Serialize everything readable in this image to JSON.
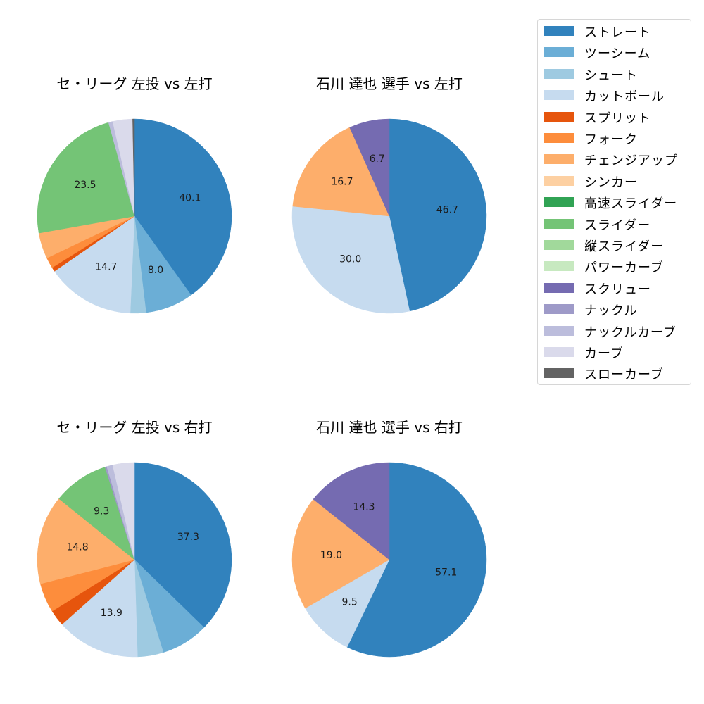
{
  "legend": {
    "items": [
      {
        "label": "ストレート",
        "color": "#3182bd"
      },
      {
        "label": "ツーシーム",
        "color": "#6baed6"
      },
      {
        "label": "シュート",
        "color": "#9ecae1"
      },
      {
        "label": "カットボール",
        "color": "#c6dbef"
      },
      {
        "label": "スプリット",
        "color": "#e6550d"
      },
      {
        "label": "フォーク",
        "color": "#fd8d3c"
      },
      {
        "label": "チェンジアップ",
        "color": "#fdae6b"
      },
      {
        "label": "シンカー",
        "color": "#fdd0a2"
      },
      {
        "label": "高速スライダー",
        "color": "#31a354"
      },
      {
        "label": "スライダー",
        "color": "#74c476"
      },
      {
        "label": "縦スライダー",
        "color": "#a1d99b"
      },
      {
        "label": "パワーカーブ",
        "color": "#c7e9c0"
      },
      {
        "label": "スクリュー",
        "color": "#756bb1"
      },
      {
        "label": "ナックル",
        "color": "#9e9ac8"
      },
      {
        "label": "ナックルカーブ",
        "color": "#bcbddc"
      },
      {
        "label": "カーブ",
        "color": "#dadaeb"
      },
      {
        "label": "スローカーブ",
        "color": "#636363"
      }
    ]
  },
  "chart_data": [
    {
      "type": "pie",
      "title": "セ・リーグ 左投 vs 左打",
      "start_angle": 90,
      "direction": "clockwise",
      "slices": [
        {
          "label": "ストレート",
          "value": 40.1,
          "shown": "40.1"
        },
        {
          "label": "ツーシーム",
          "value": 8.0,
          "shown": "8.0"
        },
        {
          "label": "シュート",
          "value": 2.6,
          "shown": ""
        },
        {
          "label": "カットボール",
          "value": 14.7,
          "shown": "14.7"
        },
        {
          "label": "スプリット",
          "value": 0.7,
          "shown": ""
        },
        {
          "label": "フォーク",
          "value": 1.8,
          "shown": ""
        },
        {
          "label": "チェンジアップ",
          "value": 4.3,
          "shown": ""
        },
        {
          "label": "スライダー",
          "value": 23.5,
          "shown": "23.5"
        },
        {
          "label": "ナックルカーブ",
          "value": 0.7,
          "shown": ""
        },
        {
          "label": "カーブ",
          "value": 3.3,
          "shown": ""
        },
        {
          "label": "スローカーブ",
          "value": 0.3,
          "shown": ""
        }
      ]
    },
    {
      "type": "pie",
      "title": "石川 達也 選手 vs 左打",
      "start_angle": 90,
      "direction": "clockwise",
      "slices": [
        {
          "label": "ストレート",
          "value": 46.7,
          "shown": "46.7"
        },
        {
          "label": "カットボール",
          "value": 30.0,
          "shown": "30.0"
        },
        {
          "label": "チェンジアップ",
          "value": 16.7,
          "shown": "16.7"
        },
        {
          "label": "スクリュー",
          "value": 6.7,
          "shown": "6.7"
        }
      ]
    },
    {
      "type": "pie",
      "title": "セ・リーグ 左投 vs 右打",
      "start_angle": 90,
      "direction": "clockwise",
      "slices": [
        {
          "label": "ストレート",
          "value": 37.3,
          "shown": "37.3"
        },
        {
          "label": "ツーシーム",
          "value": 7.9,
          "shown": ""
        },
        {
          "label": "シュート",
          "value": 4.3,
          "shown": ""
        },
        {
          "label": "カットボール",
          "value": 13.9,
          "shown": "13.9"
        },
        {
          "label": "スプリット",
          "value": 2.7,
          "shown": ""
        },
        {
          "label": "フォーク",
          "value": 4.9,
          "shown": ""
        },
        {
          "label": "チェンジアップ",
          "value": 14.8,
          "shown": "14.8"
        },
        {
          "label": "スライダー",
          "value": 9.3,
          "shown": "9.3"
        },
        {
          "label": "ナックル",
          "value": 0.3,
          "shown": ""
        },
        {
          "label": "ナックルカーブ",
          "value": 1.0,
          "shown": ""
        },
        {
          "label": "カーブ",
          "value": 3.6,
          "shown": ""
        }
      ]
    },
    {
      "type": "pie",
      "title": "石川 達也 選手 vs 右打",
      "start_angle": 90,
      "direction": "clockwise",
      "slices": [
        {
          "label": "ストレート",
          "value": 57.1,
          "shown": "57.1"
        },
        {
          "label": "カットボール",
          "value": 9.5,
          "shown": "9.5"
        },
        {
          "label": "チェンジアップ",
          "value": 19.0,
          "shown": "19.0"
        },
        {
          "label": "スクリュー",
          "value": 14.3,
          "shown": "14.3"
        }
      ]
    }
  ]
}
